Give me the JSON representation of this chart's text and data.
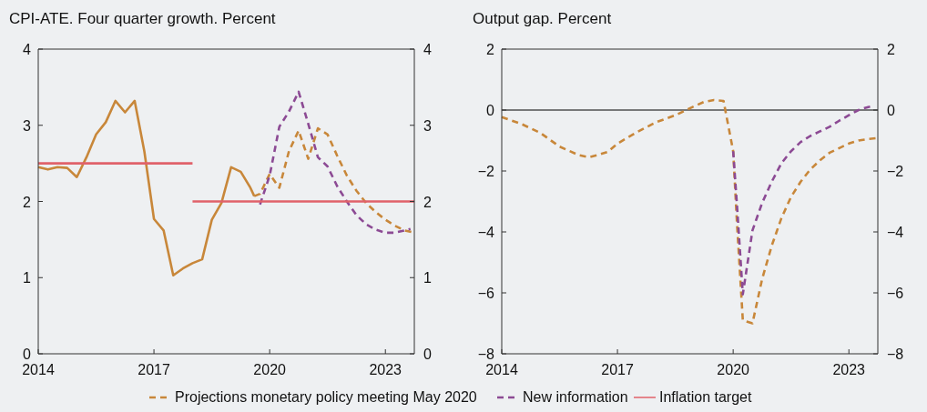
{
  "chart_data": [
    {
      "type": "line",
      "title": "CPI-ATE. Four quarter growth. Percent",
      "xlim": [
        2014,
        2023.75
      ],
      "xticks": [
        2014,
        2017,
        2020,
        2023
      ],
      "ylim": [
        0,
        4
      ],
      "yticks": [
        0,
        1,
        2,
        3,
        4
      ],
      "y2lim": [
        0,
        4
      ],
      "y2ticks": [
        0,
        1,
        2,
        3,
        4
      ],
      "grid": false,
      "legend": "bottom",
      "marker": "none",
      "series": [
        {
          "color": "#c8873a",
          "line_style": "solid",
          "x": [
            2014,
            2014.25,
            2014.5,
            2014.75,
            2015,
            2015.25,
            2015.5,
            2015.75,
            2016,
            2016.25,
            2016.5,
            2016.75,
            2017,
            2017.25,
            2017.5,
            2017.75,
            2018,
            2018.25,
            2018.5,
            2018.75,
            2019,
            2019.25,
            2019.5,
            2019.6
          ],
          "values": [
            2.45,
            2.42,
            2.45,
            2.44,
            2.32,
            2.58,
            2.88,
            3.04,
            3.32,
            3.17,
            3.32,
            2.66,
            1.77,
            1.62,
            1.03,
            1.12,
            1.19,
            1.24,
            1.76,
            1.98,
            2.45,
            2.39,
            2.18,
            2.07
          ]
        },
        {
          "name": "Projections monetary policy meeting May 2020",
          "color": "#c8873a",
          "line_style": "dashed",
          "x": [
            2019.6,
            2019.75,
            2020,
            2020.25,
            2020.5,
            2020.75,
            2021,
            2021.25,
            2021.5,
            2021.75,
            2022,
            2022.25,
            2022.5,
            2022.75,
            2023,
            2023.25,
            2023.5,
            2023.75
          ],
          "values": [
            2.07,
            2.1,
            2.36,
            2.18,
            2.66,
            2.93,
            2.56,
            2.96,
            2.88,
            2.6,
            2.34,
            2.14,
            1.98,
            1.86,
            1.76,
            1.68,
            1.62,
            1.59
          ]
        },
        {
          "name": "New information",
          "color": "#8c4a94",
          "line_style": "dashed",
          "x": [
            2019.75,
            2020,
            2020.25,
            2020.5,
            2020.75,
            2021,
            2021.25,
            2021.5,
            2021.75,
            2022,
            2022.25,
            2022.5,
            2022.75,
            2023,
            2023.25,
            2023.5,
            2023.65
          ],
          "values": [
            1.96,
            2.34,
            2.98,
            3.18,
            3.44,
            3.02,
            2.58,
            2.46,
            2.2,
            2,
            1.82,
            1.7,
            1.63,
            1.59,
            1.59,
            1.62,
            1.64
          ]
        },
        {
          "name": "Inflation target",
          "color": "#e0626a",
          "line_style": "solid",
          "x": [
            2014,
            2018
          ],
          "values": [
            2.5,
            2.5
          ]
        },
        {
          "color": "#e0626a",
          "line_style": "solid",
          "x": [
            2018,
            2023.75
          ],
          "values": [
            2,
            2
          ]
        }
      ]
    },
    {
      "type": "line",
      "title": "Output gap. Percent",
      "xlim": [
        2014,
        2023.75
      ],
      "xticks": [
        2014,
        2017,
        2020,
        2023
      ],
      "ylim": [
        -8,
        2
      ],
      "yticks": [
        {
          "value": -8,
          "label": "−8"
        },
        {
          "value": -6,
          "label": "−6"
        },
        {
          "value": -4,
          "label": "−4"
        },
        {
          "value": -2,
          "label": "−2"
        },
        0,
        2
      ],
      "y2lim": [
        -8,
        2
      ],
      "y2ticks": [
        {
          "value": -8,
          "label": "−8"
        },
        {
          "value": -6,
          "label": "−6"
        },
        {
          "value": -4,
          "label": "−4"
        },
        {
          "value": -2,
          "label": "−2"
        },
        0,
        2
      ],
      "grid": false,
      "legend": "bottom",
      "marker": "none",
      "ref_lines": [
        {
          "axis": "y",
          "value": 0,
          "color": "#000000",
          "line_style": "solid"
        }
      ],
      "series": [
        {
          "name": "Projections monetary policy meeting May 2020",
          "color": "#c8873a",
          "line_style": "dashed",
          "x": [
            2014,
            2014.5,
            2015,
            2015.5,
            2016,
            2016.25,
            2016.5,
            2016.75,
            2017,
            2017.5,
            2018,
            2018.5,
            2019,
            2019.25,
            2019.5,
            2019.75,
            2020,
            2020.1,
            2020.25,
            2020.5,
            2020.75,
            2021,
            2021.25,
            2021.5,
            2021.75,
            2022,
            2022.25,
            2022.5,
            2022.75,
            2023,
            2023.25,
            2023.5,
            2023.75
          ],
          "values": [
            -0.23,
            -0.45,
            -0.75,
            -1.2,
            -1.48,
            -1.55,
            -1.47,
            -1.37,
            -1.1,
            -0.73,
            -0.4,
            -0.17,
            0.13,
            0.27,
            0.33,
            0.3,
            -1.35,
            -3.75,
            -6.9,
            -7,
            -5.55,
            -4.45,
            -3.55,
            -2.85,
            -2.35,
            -1.95,
            -1.65,
            -1.4,
            -1.25,
            -1.1,
            -1,
            -0.95,
            -0.92
          ]
        },
        {
          "name": "New information",
          "color": "#8c4a94",
          "line_style": "dashed",
          "x": [
            2020,
            2020.1,
            2020.25,
            2020.5,
            2020.75,
            2021,
            2021.25,
            2021.5,
            2021.75,
            2022,
            2022.25,
            2022.5,
            2022.75,
            2023,
            2023.25,
            2023.5,
            2023.6
          ],
          "values": [
            -1.35,
            -3.15,
            -6.05,
            -3.95,
            -3.05,
            -2.35,
            -1.75,
            -1.35,
            -1.05,
            -0.85,
            -0.7,
            -0.55,
            -0.35,
            -0.17,
            0,
            0.1,
            0.13
          ]
        }
      ]
    }
  ]
}
